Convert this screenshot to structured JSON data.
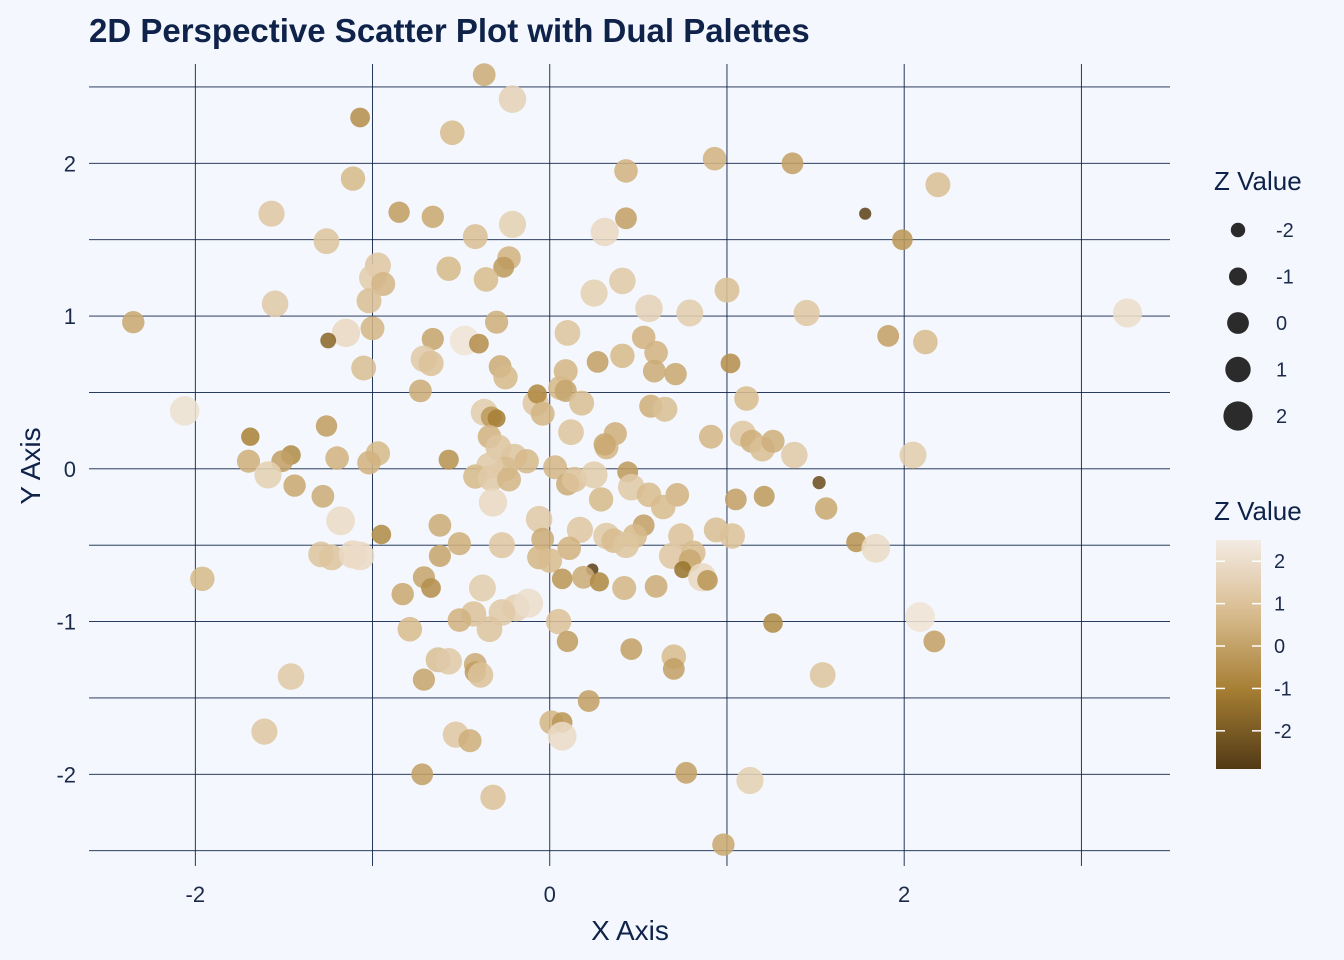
{
  "chart_data": {
    "type": "scatter",
    "title": "2D Perspective Scatter Plot with Dual Palettes",
    "xlabel": "X Axis",
    "ylabel": "Y Axis",
    "xlim": [
      -2.6,
      3.5
    ],
    "ylim": [
      -2.6,
      2.65
    ],
    "x_ticks": [
      -2,
      0,
      2
    ],
    "y_ticks": [
      -2,
      -1,
      0,
      1,
      2
    ],
    "grid": true,
    "size_legend": {
      "title": "Z Value",
      "values": [
        -2,
        -1,
        0,
        1,
        2
      ],
      "labels": [
        "-2",
        "-1",
        "0",
        "1",
        "2"
      ]
    },
    "color_legend": {
      "title": "Z Value",
      "range": [
        -2.9,
        2.5
      ],
      "ticks": [
        2,
        1,
        0,
        -1,
        -2
      ],
      "labels": [
        "2",
        "1",
        "0",
        "-1",
        "-2"
      ],
      "colors": [
        "#523a16",
        "#a77f34",
        "#d7ba8c",
        "#f4ebe4"
      ]
    },
    "points": [
      [
        -0.37,
        2.58,
        0.3
      ],
      [
        -0.21,
        2.42,
        1.6
      ],
      [
        -1.07,
        2.3,
        -0.5
      ],
      [
        -0.55,
        2.2,
        0.8
      ],
      [
        -1.11,
        1.9,
        0.7
      ],
      [
        0.43,
        1.95,
        0.5
      ],
      [
        0.93,
        2.03,
        0.5
      ],
      [
        1.37,
        2.0,
        0.0
      ],
      [
        2.19,
        1.86,
        0.9
      ],
      [
        1.78,
        1.67,
        -2.6
      ],
      [
        1.99,
        1.5,
        -0.3
      ],
      [
        -1.57,
        1.67,
        1.2
      ],
      [
        -0.85,
        1.68,
        -0.1
      ],
      [
        -0.66,
        1.65,
        0.2
      ],
      [
        -0.21,
        1.6,
        1.5
      ],
      [
        0.31,
        1.55,
        1.8
      ],
      [
        0.43,
        1.64,
        0.0
      ],
      [
        -1.26,
        1.49,
        1.1
      ],
      [
        -0.42,
        1.52,
        0.9
      ],
      [
        -0.23,
        1.38,
        0.5
      ],
      [
        -0.97,
        1.33,
        1.2
      ],
      [
        -0.57,
        1.31,
        0.7
      ],
      [
        -0.26,
        1.32,
        -0.2
      ],
      [
        -1.0,
        1.25,
        1.4
      ],
      [
        -0.36,
        1.24,
        0.8
      ],
      [
        -0.94,
        1.21,
        0.6
      ],
      [
        0.41,
        1.23,
        1.3
      ],
      [
        0.25,
        1.15,
        1.5
      ],
      [
        1.0,
        1.17,
        0.9
      ],
      [
        -1.02,
        1.1,
        0.9
      ],
      [
        -1.55,
        1.08,
        1.3
      ],
      [
        0.56,
        1.05,
        1.6
      ],
      [
        0.79,
        1.02,
        1.4
      ],
      [
        1.45,
        1.02,
        1.2
      ],
      [
        3.26,
        1.02,
        2.0
      ],
      [
        -2.35,
        0.96,
        0.2
      ],
      [
        -0.3,
        0.96,
        0.4
      ],
      [
        -1.0,
        0.92,
        0.6
      ],
      [
        -1.15,
        0.89,
        1.8
      ],
      [
        0.1,
        0.89,
        1.1
      ],
      [
        0.53,
        0.86,
        0.5
      ],
      [
        1.91,
        0.87,
        0.0
      ],
      [
        -1.25,
        0.84,
        -1.6
      ],
      [
        -0.66,
        0.85,
        0.1
      ],
      [
        -0.48,
        0.84,
        2.2
      ],
      [
        -0.4,
        0.82,
        -0.5
      ],
      [
        2.12,
        0.83,
        0.8
      ],
      [
        0.6,
        0.76,
        0.5
      ],
      [
        -0.71,
        0.72,
        1.3
      ],
      [
        -0.67,
        0.69,
        1.0
      ],
      [
        0.41,
        0.74,
        0.7
      ],
      [
        -0.28,
        0.67,
        0.3
      ],
      [
        0.09,
        0.64,
        0.6
      ],
      [
        0.27,
        0.7,
        0.0
      ],
      [
        0.59,
        0.64,
        0.3
      ],
      [
        0.71,
        0.62,
        0.2
      ],
      [
        1.02,
        0.69,
        -0.5
      ],
      [
        -1.05,
        0.66,
        0.9
      ],
      [
        -0.25,
        0.6,
        0.7
      ],
      [
        0.06,
        0.53,
        0.7
      ],
      [
        0.09,
        0.51,
        0.1
      ],
      [
        -0.73,
        0.51,
        0.3
      ],
      [
        1.11,
        0.46,
        0.8
      ],
      [
        0.18,
        0.43,
        0.9
      ],
      [
        0.57,
        0.41,
        0.4
      ],
      [
        0.65,
        0.39,
        0.9
      ],
      [
        -0.08,
        0.43,
        1.2
      ],
      [
        -0.07,
        0.49,
        -0.7
      ],
      [
        -0.37,
        0.37,
        1.4
      ],
      [
        -0.33,
        0.34,
        -0.2
      ],
      [
        -0.3,
        0.33,
        -1.0
      ],
      [
        -0.34,
        0.21,
        0.5
      ],
      [
        -0.04,
        0.36,
        0.6
      ],
      [
        -1.69,
        0.21,
        -0.9
      ],
      [
        -1.26,
        0.28,
        -0.1
      ],
      [
        -2.06,
        0.38,
        2.1
      ],
      [
        0.12,
        0.24,
        1.1
      ],
      [
        0.37,
        0.23,
        0.4
      ],
      [
        0.91,
        0.21,
        0.6
      ],
      [
        1.09,
        0.23,
        1.2
      ],
      [
        1.14,
        0.18,
        0.4
      ],
      [
        1.2,
        0.13,
        0.9
      ],
      [
        1.26,
        0.18,
        0.4
      ],
      [
        1.38,
        0.09,
        1.3
      ],
      [
        2.05,
        0.09,
        1.4
      ],
      [
        -0.97,
        0.1,
        0.7
      ],
      [
        -0.29,
        0.14,
        1.1
      ],
      [
        0.32,
        0.14,
        0.6
      ],
      [
        0.31,
        0.16,
        0.2
      ],
      [
        -0.2,
        0.08,
        1.1
      ],
      [
        -1.46,
        0.09,
        -0.6
      ],
      [
        -1.51,
        0.05,
        0.0
      ],
      [
        -1.7,
        0.05,
        0.4
      ],
      [
        -1.2,
        0.07,
        0.5
      ],
      [
        -1.02,
        0.04,
        0.5
      ],
      [
        -0.57,
        0.06,
        -0.4
      ],
      [
        -0.13,
        0.05,
        0.7
      ],
      [
        -0.25,
        0.0,
        0.8
      ],
      [
        0.03,
        0.01,
        0.6
      ],
      [
        0.44,
        -0.02,
        -0.2
      ],
      [
        -0.34,
        0.02,
        1.3
      ],
      [
        -1.59,
        -0.04,
        1.5
      ],
      [
        -1.44,
        -0.11,
        0.2
      ],
      [
        -0.42,
        -0.05,
        0.7
      ],
      [
        -0.33,
        -0.06,
        1.3
      ],
      [
        -0.23,
        -0.07,
        0.6
      ],
      [
        0.1,
        -0.1,
        0.3
      ],
      [
        0.14,
        -0.07,
        1.0
      ],
      [
        0.25,
        -0.04,
        1.4
      ],
      [
        0.46,
        -0.12,
        1.3
      ],
      [
        0.56,
        -0.17,
        0.8
      ],
      [
        0.72,
        -0.17,
        0.5
      ],
      [
        1.52,
        -0.09,
        -2.3
      ],
      [
        0.29,
        -0.2,
        0.7
      ],
      [
        0.64,
        -0.25,
        0.8
      ],
      [
        1.05,
        -0.2,
        0.0
      ],
      [
        1.21,
        -0.18,
        -0.2
      ],
      [
        -1.28,
        -0.18,
        0.3
      ],
      [
        -0.32,
        -0.22,
        1.8
      ],
      [
        1.56,
        -0.26,
        0.2
      ],
      [
        -1.18,
        -0.34,
        1.9
      ],
      [
        -0.06,
        -0.33,
        1.3
      ],
      [
        0.17,
        -0.4,
        1.2
      ],
      [
        0.32,
        -0.44,
        1.3
      ],
      [
        0.53,
        -0.37,
        0.0
      ],
      [
        0.74,
        -0.44,
        1.0
      ],
      [
        0.94,
        -0.4,
        0.9
      ],
      [
        1.03,
        -0.44,
        1.0
      ],
      [
        -0.62,
        -0.37,
        0.3
      ],
      [
        -0.95,
        -0.43,
        -0.6
      ],
      [
        -0.51,
        -0.49,
        0.4
      ],
      [
        -0.04,
        -0.46,
        0.3
      ],
      [
        -0.27,
        -0.5,
        1.2
      ],
      [
        0.36,
        -0.47,
        0.8
      ],
      [
        0.48,
        -0.44,
        0.7
      ],
      [
        0.43,
        -0.5,
        1.1
      ],
      [
        1.73,
        -0.48,
        -0.4
      ],
      [
        1.84,
        -0.52,
        1.9
      ],
      [
        0.11,
        -0.52,
        0.5
      ],
      [
        -1.29,
        -0.56,
        1.1
      ],
      [
        -1.23,
        -0.58,
        1.1
      ],
      [
        -1.11,
        -0.56,
        1.8
      ],
      [
        -1.07,
        -0.57,
        1.9
      ],
      [
        -0.62,
        -0.57,
        0.1
      ],
      [
        -0.06,
        -0.58,
        0.6
      ],
      [
        0.0,
        -0.6,
        0.8
      ],
      [
        0.69,
        -0.57,
        1.2
      ],
      [
        0.81,
        -0.55,
        0.8
      ],
      [
        0.79,
        -0.6,
        0.2
      ],
      [
        0.75,
        -0.66,
        -1.3
      ],
      [
        0.24,
        -0.66,
        -2.6
      ],
      [
        0.07,
        -0.72,
        -0.3
      ],
      [
        0.19,
        -0.71,
        0.3
      ],
      [
        0.28,
        -0.74,
        -0.7
      ],
      [
        0.86,
        -0.71,
        1.8
      ],
      [
        0.89,
        -0.73,
        -0.3
      ],
      [
        0.42,
        -0.78,
        0.6
      ],
      [
        0.6,
        -0.77,
        0.3
      ],
      [
        -0.71,
        -0.71,
        0.1
      ],
      [
        -0.67,
        -0.78,
        -0.5
      ],
      [
        -0.38,
        -0.78,
        1.4
      ],
      [
        -1.96,
        -0.72,
        0.7
      ],
      [
        -0.83,
        -0.82,
        0.2
      ],
      [
        -0.19,
        -0.91,
        1.5
      ],
      [
        -0.12,
        -0.88,
        2.0
      ],
      [
        -0.27,
        -0.94,
        1.3
      ],
      [
        -0.43,
        -0.95,
        1.0
      ],
      [
        -0.51,
        -0.99,
        0.5
      ],
      [
        0.05,
        -1.0,
        1.0
      ],
      [
        -0.79,
        -1.05,
        0.8
      ],
      [
        -0.34,
        -1.05,
        1.1
      ],
      [
        1.26,
        -1.01,
        -0.6
      ],
      [
        2.09,
        -0.97,
        2.2
      ],
      [
        2.17,
        -1.13,
        0.0
      ],
      [
        0.1,
        -1.13,
        -0.1
      ],
      [
        0.46,
        -1.18,
        0.0
      ],
      [
        -0.63,
        -1.25,
        0.9
      ],
      [
        -0.57,
        -1.26,
        1.3
      ],
      [
        -0.42,
        -1.28,
        0.3
      ],
      [
        -0.42,
        -1.33,
        -0.1
      ],
      [
        -0.39,
        -1.35,
        1.0
      ],
      [
        0.7,
        -1.23,
        0.8
      ],
      [
        0.7,
        -1.31,
        0.0
      ],
      [
        -0.71,
        -1.38,
        0.1
      ],
      [
        -1.46,
        -1.36,
        1.3
      ],
      [
        1.54,
        -1.35,
        1.1
      ],
      [
        0.22,
        -1.52,
        0.0
      ],
      [
        0.01,
        -1.66,
        0.6
      ],
      [
        0.07,
        -1.66,
        -0.3
      ],
      [
        0.07,
        -1.75,
        1.9
      ],
      [
        -1.61,
        -1.72,
        1.2
      ],
      [
        -0.53,
        -1.74,
        1.2
      ],
      [
        -0.45,
        -1.78,
        0.4
      ],
      [
        -0.72,
        -2.0,
        0.0
      ],
      [
        0.77,
        -1.99,
        0.0
      ],
      [
        1.13,
        -2.04,
        1.5
      ],
      [
        -0.32,
        -2.15,
        1.0
      ],
      [
        0.98,
        -2.46,
        0.2
      ]
    ]
  }
}
